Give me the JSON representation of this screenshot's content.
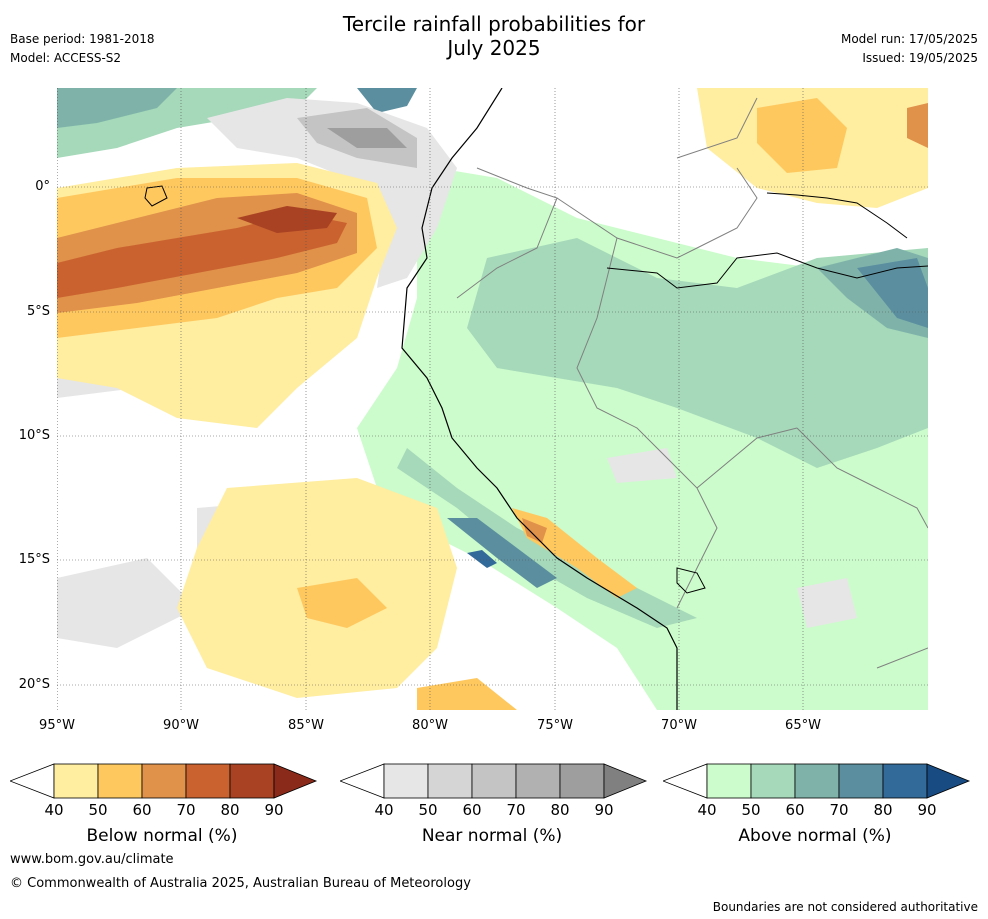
{
  "title": {
    "line1": "Tercile rainfall probabilities for",
    "line2": "July 2025"
  },
  "meta": {
    "base_period": "Base period: 1981-2018",
    "model": "Model: ACCESS-S2",
    "model_run": "Model run: 17/05/2025",
    "issued": "Issued: 19/05/2025"
  },
  "axes": {
    "lat_ticks": [
      "0°",
      "5°S",
      "10°S",
      "15°S",
      "20°S"
    ],
    "lon_ticks": [
      "95°W",
      "90°W",
      "85°W",
      "80°W",
      "75°W",
      "70°W",
      "65°W"
    ]
  },
  "colorbars": [
    {
      "label": "Below normal (%)",
      "ticks": [
        "40",
        "50",
        "60",
        "70",
        "80",
        "90"
      ],
      "colors": [
        "#ffeda0",
        "#fec85f",
        "#e0914a",
        "#c9622f",
        "#a84223",
        "#8a2a1a"
      ]
    },
    {
      "label": "Near normal (%)",
      "ticks": [
        "40",
        "50",
        "60",
        "70",
        "80",
        "90"
      ],
      "colors": [
        "#e6e6e6",
        "#d5d5d5",
        "#c4c4c4",
        "#b1b1b1",
        "#9e9e9e",
        "#808080"
      ]
    },
    {
      "label": "Above normal (%)",
      "ticks": [
        "40",
        "50",
        "60",
        "70",
        "80",
        "90"
      ],
      "colors": [
        "#ccfccc",
        "#a5d9b9",
        "#7fb3aa",
        "#5b8fa0",
        "#326a9a",
        "#184b82"
      ]
    }
  ],
  "footer": {
    "url": "www.bom.gov.au/climate",
    "copyright": "© Commonwealth of Australia 2025, Australian Bureau of Meteorology",
    "disclaimer": "Boundaries are not considered authoritative"
  }
}
